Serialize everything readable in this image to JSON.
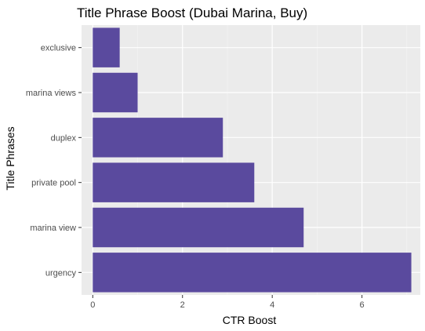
{
  "chart_data": {
    "type": "bar",
    "orientation": "horizontal",
    "title": "Title Phrase Boost (Dubai Marina, Buy)",
    "xlabel": "CTR Boost",
    "ylabel": "Title Phrases",
    "categories": [
      "urgency",
      "marina view",
      "private pool",
      "duplex",
      "marina views",
      "exclusive"
    ],
    "values": [
      7.1,
      4.7,
      3.6,
      2.9,
      1.0,
      0.6
    ],
    "xlim": [
      -0.25,
      7.3
    ],
    "xticks": [
      0,
      2,
      4,
      6
    ],
    "grid": true,
    "legend": "none",
    "colors": {
      "bar": "#5a4a9e",
      "panel": "#ebebeb",
      "grid_major": "#ffffff",
      "grid_minor": "#f5f5f5",
      "tick": "#333333"
    }
  }
}
